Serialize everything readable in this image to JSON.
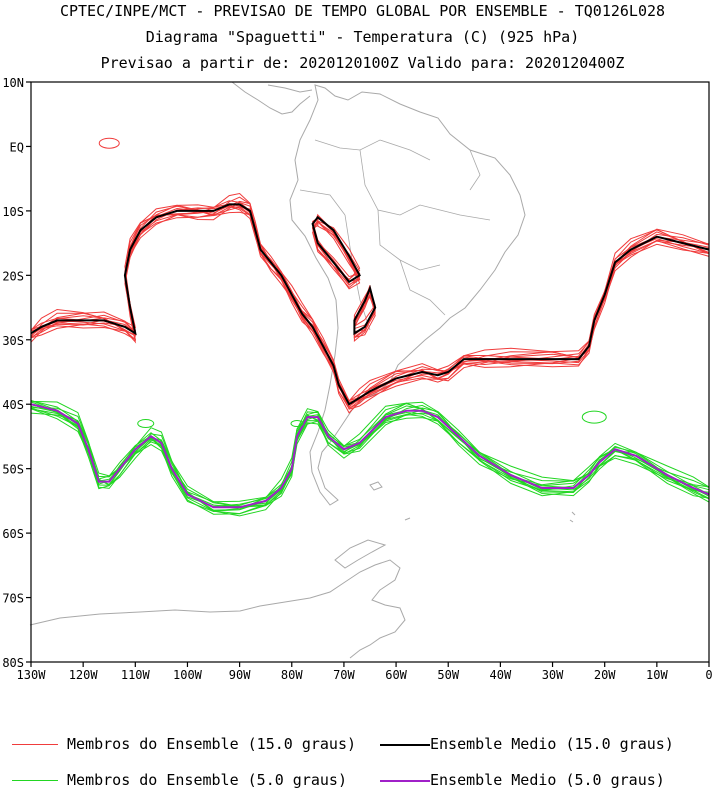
{
  "titles": {
    "line1": "CPTEC/INPE/MCT - PREVISAO DE TEMPO GLOBAL POR ENSEMBLE - TQ0126L028",
    "line2": "Diagrama \"Spaguetti\" - Temperatura (C) (925 hPa)",
    "line3": "Previsao a partir de: 2020120100Z  Valido para: 2020120400Z"
  },
  "axes": {
    "lat_labels": [
      "10N",
      "EQ",
      "10S",
      "20S",
      "30S",
      "40S",
      "50S",
      "60S",
      "70S",
      "80S"
    ],
    "lon_labels": [
      "130W",
      "120W",
      "110W",
      "100W",
      "90W",
      "80W",
      "70W",
      "60W",
      "50W",
      "40W",
      "30W",
      "20W",
      "10W",
      "0"
    ],
    "lat_range": [
      10,
      -80
    ],
    "lon_range": [
      -130,
      0
    ]
  },
  "legend": {
    "members_15": "Membros do Ensemble (15.0 graus)",
    "mean_15": "Ensemble Medio (15.0 graus)",
    "members_5": "Membros do Ensemble (5.0 graus)",
    "mean_5": "Ensemble Medio (5.0 graus)"
  },
  "colors": {
    "members_15": "#f03c3c",
    "mean_15": "#000000",
    "members_5": "#22d622",
    "mean_5": "#a020c8",
    "coast": "#a9a9a9"
  },
  "isotherms": {
    "iso_15": [
      [
        -130,
        -29
      ],
      [
        -128,
        -28
      ],
      [
        -125,
        -27
      ],
      [
        -120,
        -27
      ],
      [
        -116,
        -27
      ],
      [
        -112,
        -28
      ],
      [
        -110,
        -29
      ],
      [
        -111,
        -25
      ],
      [
        -112,
        -20
      ],
      [
        -111,
        -16
      ],
      [
        -109,
        -13
      ],
      [
        -106,
        -11
      ],
      [
        -102,
        -10
      ],
      [
        -98,
        -10
      ],
      [
        -95,
        -10
      ],
      [
        -92,
        -9
      ],
      [
        -90,
        -9
      ],
      [
        -88,
        -10
      ],
      [
        -87,
        -13
      ],
      [
        -86,
        -16
      ],
      [
        -84,
        -18
      ],
      [
        -82,
        -20
      ],
      [
        -80,
        -23
      ],
      [
        -78,
        -26
      ],
      [
        -76,
        -28
      ],
      [
        -74,
        -31
      ],
      [
        -72,
        -34
      ],
      [
        -71,
        -37
      ],
      [
        -69,
        -40
      ],
      [
        -67,
        -39
      ],
      [
        -65,
        -38
      ],
      [
        -60,
        -36
      ],
      [
        -55,
        -35
      ],
      [
        -52,
        -35.5
      ],
      [
        -50,
        -35
      ],
      [
        -47,
        -33
      ],
      [
        -43,
        -33
      ],
      [
        -38,
        -33
      ],
      [
        -30,
        -33
      ],
      [
        -25,
        -33
      ],
      [
        -23,
        -31
      ],
      [
        -22,
        -27
      ],
      [
        -20,
        -23
      ],
      [
        -18,
        -18
      ],
      [
        -15,
        -16
      ],
      [
        -10,
        -14
      ],
      [
        -5,
        -15
      ],
      [
        0,
        -16
      ]
    ],
    "iso_5": [
      [
        -130,
        -40
      ],
      [
        -125,
        -41
      ],
      [
        -121,
        -43
      ],
      [
        -119,
        -47
      ],
      [
        -117,
        -52
      ],
      [
        -115,
        -52
      ],
      [
        -113,
        -50
      ],
      [
        -110,
        -47
      ],
      [
        -107,
        -45
      ],
      [
        -105,
        -46
      ],
      [
        -103,
        -50
      ],
      [
        -100,
        -54
      ],
      [
        -95,
        -56
      ],
      [
        -90,
        -56
      ],
      [
        -85,
        -55
      ],
      [
        -82,
        -53
      ],
      [
        -80,
        -50
      ],
      [
        -79,
        -45
      ],
      [
        -77,
        -42
      ],
      [
        -75,
        -42
      ],
      [
        -73,
        -45
      ],
      [
        -70,
        -47
      ],
      [
        -67,
        -46
      ],
      [
        -62,
        -42
      ],
      [
        -58,
        -41
      ],
      [
        -55,
        -41
      ],
      [
        -52,
        -42
      ],
      [
        -48,
        -45
      ],
      [
        -44,
        -48
      ],
      [
        -38,
        -51
      ],
      [
        -32,
        -53
      ],
      [
        -26,
        -53
      ],
      [
        -23,
        -51
      ],
      [
        -21,
        -49
      ],
      [
        -18,
        -47
      ],
      [
        -14,
        -48
      ],
      [
        -8,
        -51
      ],
      [
        -3,
        -53
      ],
      [
        0,
        -54
      ]
    ],
    "closed_15": [
      [
        [
          -75,
          -11
        ],
        [
          -72,
          -13
        ],
        [
          -69,
          -17
        ],
        [
          -67,
          -20
        ],
        [
          -69,
          -21
        ],
        [
          -72,
          -18
        ],
        [
          -75,
          -15
        ],
        [
          -76,
          -12
        ],
        [
          -75,
          -11
        ]
      ],
      [
        [
          -65,
          -22
        ],
        [
          -64,
          -25
        ],
        [
          -66,
          -28
        ],
        [
          -68,
          -29
        ],
        [
          -68,
          -27
        ],
        [
          -66,
          -24
        ],
        [
          -65,
          -22
        ]
      ]
    ]
  }
}
